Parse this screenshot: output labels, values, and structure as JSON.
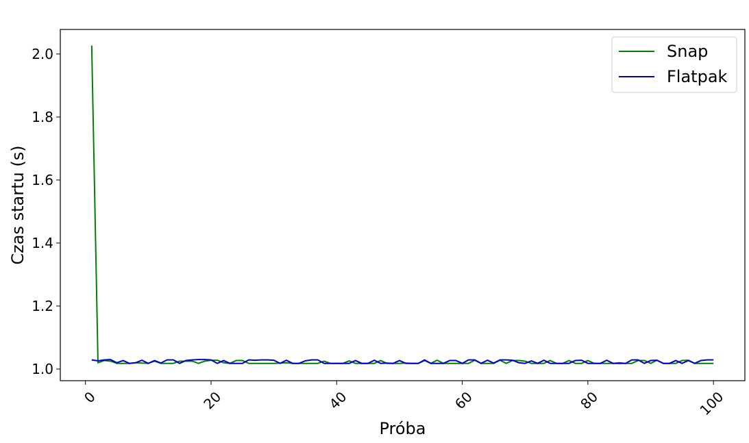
{
  "chart_data": {
    "type": "line",
    "title": "",
    "xlabel": "Próba",
    "ylabel": "Czas startu (s)",
    "xlim": [
      -4,
      105
    ],
    "ylim": [
      0.963,
      2.078
    ],
    "xticks": [
      0,
      20,
      40,
      60,
      80,
      100
    ],
    "xtick_labels": [
      "0",
      "20",
      "40",
      "60",
      "80",
      "100"
    ],
    "yticks": [
      1.0,
      1.2,
      1.4,
      1.6,
      1.8,
      2.0
    ],
    "ytick_labels": [
      "1.0",
      "1.2",
      "1.4",
      "1.6",
      "1.8",
      "2.0"
    ],
    "xtick_rotation": 45,
    "grid": false,
    "legend_position": "top-right",
    "x": [
      1,
      2,
      3,
      4,
      5,
      6,
      7,
      8,
      9,
      10,
      11,
      12,
      13,
      14,
      15,
      16,
      17,
      18,
      19,
      20,
      21,
      22,
      23,
      24,
      25,
      26,
      27,
      28,
      29,
      30,
      31,
      32,
      33,
      34,
      35,
      36,
      37,
      38,
      39,
      40,
      41,
      42,
      43,
      44,
      45,
      46,
      47,
      48,
      49,
      50,
      51,
      52,
      53,
      54,
      55,
      56,
      57,
      58,
      59,
      60,
      61,
      62,
      63,
      64,
      65,
      66,
      67,
      68,
      69,
      70,
      71,
      72,
      73,
      74,
      75,
      76,
      77,
      78,
      79,
      80,
      81,
      82,
      83,
      84,
      85,
      86,
      87,
      88,
      89,
      90,
      91,
      92,
      93,
      94,
      95,
      96,
      97,
      98,
      99,
      100
    ],
    "series": [
      {
        "name": "Snap",
        "color": "#008000",
        "values": [
          2.027,
          1.02,
          1.027,
          1.025,
          1.018,
          1.018,
          1.018,
          1.02,
          1.019,
          1.018,
          1.025,
          1.018,
          1.018,
          1.018,
          1.025,
          1.025,
          1.025,
          1.018,
          1.025,
          1.028,
          1.028,
          1.02,
          1.018,
          1.027,
          1.027,
          1.018,
          1.018,
          1.018,
          1.018,
          1.018,
          1.019,
          1.02,
          1.018,
          1.018,
          1.018,
          1.018,
          1.018,
          1.025,
          1.018,
          1.018,
          1.018,
          1.026,
          1.018,
          1.018,
          1.018,
          1.018,
          1.027,
          1.018,
          1.018,
          1.018,
          1.019,
          1.018,
          1.018,
          1.027,
          1.018,
          1.028,
          1.018,
          1.018,
          1.018,
          1.018,
          1.018,
          1.028,
          1.018,
          1.018,
          1.018,
          1.028,
          1.018,
          1.027,
          1.027,
          1.025,
          1.018,
          1.018,
          1.018,
          1.027,
          1.018,
          1.018,
          1.027,
          1.018,
          1.018,
          1.027,
          1.018,
          1.018,
          1.018,
          1.018,
          1.02,
          1.018,
          1.018,
          1.027,
          1.027,
          1.018,
          1.028,
          1.018,
          1.018,
          1.018,
          1.027,
          1.028,
          1.018,
          1.018,
          1.018,
          1.018
        ]
      },
      {
        "name": "Flatpak",
        "color": "#0000cc",
        "values": [
          1.029,
          1.026,
          1.029,
          1.03,
          1.02,
          1.027,
          1.018,
          1.02,
          1.028,
          1.018,
          1.027,
          1.019,
          1.029,
          1.029,
          1.018,
          1.027,
          1.029,
          1.03,
          1.03,
          1.029,
          1.018,
          1.027,
          1.018,
          1.018,
          1.018,
          1.029,
          1.028,
          1.029,
          1.029,
          1.028,
          1.018,
          1.028,
          1.018,
          1.018,
          1.026,
          1.029,
          1.029,
          1.018,
          1.018,
          1.018,
          1.018,
          1.018,
          1.027,
          1.018,
          1.018,
          1.028,
          1.018,
          1.019,
          1.018,
          1.027,
          1.018,
          1.018,
          1.018,
          1.029,
          1.018,
          1.018,
          1.018,
          1.027,
          1.027,
          1.018,
          1.029,
          1.029,
          1.018,
          1.028,
          1.019,
          1.029,
          1.029,
          1.028,
          1.02,
          1.018,
          1.026,
          1.018,
          1.028,
          1.018,
          1.018,
          1.018,
          1.018,
          1.027,
          1.028,
          1.018,
          1.018,
          1.018,
          1.028,
          1.018,
          1.018,
          1.018,
          1.029,
          1.029,
          1.018,
          1.027,
          1.028,
          1.018,
          1.018,
          1.027,
          1.018,
          1.027,
          1.018,
          1.027,
          1.029,
          1.029
        ]
      }
    ]
  }
}
